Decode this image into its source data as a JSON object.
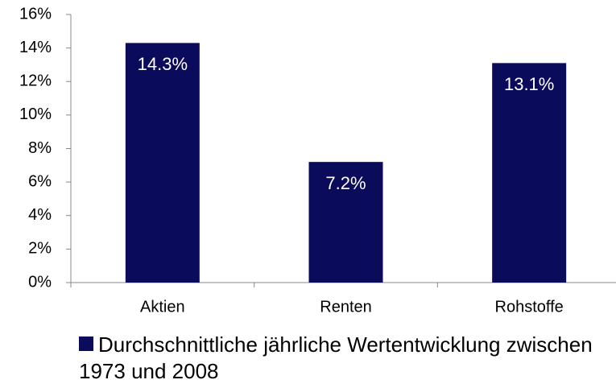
{
  "chart_data": {
    "type": "bar",
    "categories": [
      "Aktien",
      "Renten",
      "Rohstoffe"
    ],
    "series": [
      {
        "name": "Durchschnittliche jährliche Wertentwicklung zwischen 1973 und 2008",
        "color": "#0b0b5c",
        "values": [
          14.3,
          7.2,
          13.1
        ],
        "value_labels": [
          "14.3%",
          "7.2%",
          "13.1%"
        ]
      }
    ],
    "ylim": [
      0,
      16
    ],
    "yticks": [
      {
        "value": 0,
        "label": "0%"
      },
      {
        "value": 2,
        "label": "2%"
      },
      {
        "value": 4,
        "label": "4%"
      },
      {
        "value": 6,
        "label": "6%"
      },
      {
        "value": 8,
        "label": "8%"
      },
      {
        "value": 10,
        "label": "10%"
      },
      {
        "value": 12,
        "label": "12%"
      },
      {
        "value": 14,
        "label": "14%"
      },
      {
        "value": 16,
        "label": "16%"
      }
    ],
    "grid": false,
    "legend": "bottom"
  }
}
